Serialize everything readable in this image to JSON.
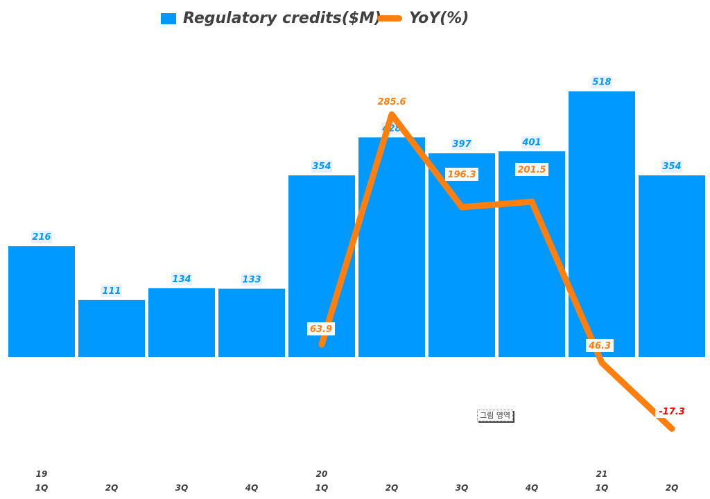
{
  "legend": {
    "bar_label": "Regulatory credits($M)",
    "line_label": "YoY(%)"
  },
  "colors": {
    "bar": "#0099FF",
    "line": "#FF7F0E",
    "negative_label": "#FF0000",
    "axis_text": "#404040"
  },
  "tooltip": "그림 영역",
  "chart_data": {
    "type": "bar",
    "title": "",
    "xlabel": "",
    "ylabel": "",
    "categories": [
      "19 1Q",
      "2Q",
      "3Q",
      "4Q",
      "20 1Q",
      "2Q",
      "3Q",
      "4Q",
      "21 1Q",
      "2Q"
    ],
    "axis_labels": [
      {
        "year": "19",
        "quarter": "1Q"
      },
      {
        "year": "",
        "quarter": "2Q"
      },
      {
        "year": "",
        "quarter": "3Q"
      },
      {
        "year": "",
        "quarter": "4Q"
      },
      {
        "year": "20",
        "quarter": "1Q"
      },
      {
        "year": "",
        "quarter": "2Q"
      },
      {
        "year": "",
        "quarter": "3Q"
      },
      {
        "year": "",
        "quarter": "4Q"
      },
      {
        "year": "21",
        "quarter": "1Q"
      },
      {
        "year": "",
        "quarter": "2Q"
      }
    ],
    "series": [
      {
        "name": "Regulatory credits($M)",
        "type": "bar",
        "values": [
          216,
          111,
          134,
          133,
          354,
          428,
          397,
          401,
          518,
          354
        ]
      },
      {
        "name": "YoY(%)",
        "type": "line",
        "secondary_axis": true,
        "values": [
          null,
          null,
          null,
          null,
          63.9,
          285.6,
          196.3,
          201.5,
          46.3,
          -17.3
        ]
      }
    ],
    "legend_position": "top",
    "grid": false
  }
}
